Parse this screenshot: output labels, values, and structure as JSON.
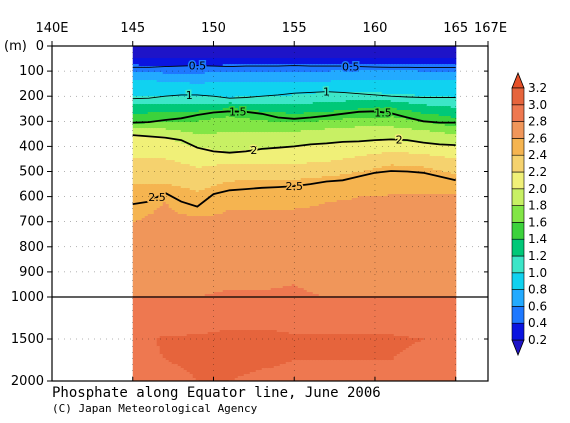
{
  "chart_data": {
    "type": "heatmap",
    "title": "Phosphate along Equator line, June 2006",
    "credit": "(C) Japan Meteorological Agency",
    "xlabel": "",
    "ylabel": "(m)",
    "x_ticks": [
      {
        "value": 140,
        "label": "140E"
      },
      {
        "value": 145,
        "label": "145"
      },
      {
        "value": 150,
        "label": "150"
      },
      {
        "value": 155,
        "label": "155"
      },
      {
        "value": 160,
        "label": "160"
      },
      {
        "value": 165,
        "label": "165"
      },
      {
        "value": 167,
        "label": "167E"
      }
    ],
    "xlim": [
      140,
      167
    ],
    "data_xlim": [
      145,
      165
    ],
    "y_ticks_upper": [
      0,
      100,
      200,
      300,
      400,
      500,
      600,
      700,
      800,
      900,
      1000
    ],
    "y_ticks_lower": [
      1000,
      1500,
      2000
    ],
    "ylim": [
      0,
      2000
    ],
    "axis_break_depth": 1000,
    "colorbar": {
      "levels": [
        0.2,
        0.4,
        0.6,
        0.8,
        1.0,
        1.2,
        1.4,
        1.6,
        1.8,
        2.0,
        2.2,
        2.4,
        2.6,
        2.8,
        3.0,
        3.2
      ],
      "labels": [
        "0.2",
        "0.4",
        "0.6",
        "0.8",
        "1.0",
        "1.2",
        "1.4",
        "1.6",
        "1.8",
        "2.0",
        "2.2",
        "2.4",
        "2.6",
        "2.8",
        "3.0",
        "3.2"
      ],
      "colors": [
        "#0a14e0",
        "#1e78ff",
        "#23aaff",
        "#10d2f0",
        "#3ce6c8",
        "#00c878",
        "#3cd23c",
        "#82e646",
        "#c8f064",
        "#f0f078",
        "#f5d26e",
        "#f5b450",
        "#f0965a",
        "#ee7850",
        "#e6643c"
      ],
      "under_color": "#1e14c8",
      "over_color": "#e65028"
    },
    "isolines": [
      {
        "value": 0.5,
        "label": "0.5",
        "major": false,
        "depths": [
          85,
          85,
          82,
          80,
          78,
          80,
          82,
          80,
          80,
          80,
          78,
          80,
          80,
          80,
          82,
          84,
          85,
          85,
          86,
          86,
          86
        ],
        "label_at": [
          [
            149,
            0.5
          ],
          [
            158.5,
            0.5
          ]
        ]
      },
      {
        "value": 1.0,
        "label": "1",
        "major": false,
        "depths": [
          210,
          208,
          200,
          195,
          195,
          200,
          208,
          205,
          200,
          195,
          188,
          185,
          182,
          185,
          190,
          195,
          200,
          203,
          205,
          205,
          205
        ],
        "label_at": [
          [
            148.5,
            1.0
          ],
          [
            157,
            1.0
          ]
        ]
      },
      {
        "value": 1.5,
        "label": "1.5",
        "major": true,
        "depths": [
          305,
          303,
          295,
          288,
          275,
          265,
          260,
          262,
          270,
          285,
          290,
          285,
          278,
          270,
          262,
          260,
          268,
          285,
          300,
          305,
          305
        ],
        "label_at": [
          [
            151.5,
            1.5
          ],
          [
            160.5,
            1.5
          ]
        ]
      },
      {
        "value": 2.0,
        "label": "2",
        "major": true,
        "depths": [
          355,
          360,
          365,
          375,
          405,
          420,
          425,
          420,
          410,
          405,
          400,
          392,
          388,
          382,
          380,
          375,
          372,
          375,
          385,
          392,
          395
        ],
        "label_at": [
          [
            152.5,
            2.0
          ],
          [
            161.5,
            2.0
          ]
        ]
      },
      {
        "value": 2.5,
        "label": "2.5",
        "major": true,
        "depths": [
          630,
          620,
          585,
          620,
          640,
          590,
          575,
          570,
          565,
          562,
          558,
          550,
          540,
          535,
          520,
          505,
          498,
          500,
          505,
          520,
          535
        ],
        "label_at": [
          [
            146.5,
            2.5
          ],
          [
            155,
            2.5
          ]
        ]
      }
    ],
    "depth_profiles": [
      {
        "x": 145,
        "v": [
          [
            0,
            0.1
          ],
          [
            50,
            0.2
          ],
          [
            100,
            0.6
          ],
          [
            150,
            0.9
          ],
          [
            200,
            1.0
          ],
          [
            250,
            1.3
          ],
          [
            300,
            1.5
          ],
          [
            350,
            2.0
          ],
          [
            400,
            2.1
          ],
          [
            450,
            2.2
          ],
          [
            500,
            2.3
          ],
          [
            550,
            2.4
          ],
          [
            600,
            2.5
          ],
          [
            620,
            2.5
          ],
          [
            700,
            2.6
          ],
          [
            800,
            2.7
          ],
          [
            900,
            2.75
          ],
          [
            1000,
            2.8
          ],
          [
            1200,
            2.85
          ],
          [
            1500,
            2.95
          ],
          [
            2000,
            2.95
          ]
        ]
      },
      {
        "x": 147,
        "v": [
          [
            0,
            0.1
          ],
          [
            50,
            0.2
          ],
          [
            100,
            0.55
          ],
          [
            150,
            0.85
          ],
          [
            200,
            1.0
          ],
          [
            250,
            1.35
          ],
          [
            300,
            1.6
          ],
          [
            360,
            2.0
          ],
          [
            420,
            2.15
          ],
          [
            480,
            2.25
          ],
          [
            530,
            2.35
          ],
          [
            580,
            2.5
          ],
          [
            620,
            2.6
          ],
          [
            700,
            2.65
          ],
          [
            800,
            2.7
          ],
          [
            900,
            2.78
          ],
          [
            1000,
            2.8
          ],
          [
            1200,
            2.88
          ],
          [
            1500,
            3.02
          ],
          [
            2000,
            2.98
          ]
        ]
      },
      {
        "x": 149,
        "v": [
          [
            0,
            0.1
          ],
          [
            50,
            0.2
          ],
          [
            100,
            0.55
          ],
          [
            150,
            0.8
          ],
          [
            200,
            1.0
          ],
          [
            260,
            1.4
          ],
          [
            300,
            1.6
          ],
          [
            405,
            2.0
          ],
          [
            450,
            2.15
          ],
          [
            520,
            2.25
          ],
          [
            580,
            2.4
          ],
          [
            640,
            2.5
          ],
          [
            680,
            2.6
          ],
          [
            750,
            2.65
          ],
          [
            850,
            2.72
          ],
          [
            1000,
            2.8
          ],
          [
            1200,
            2.9
          ],
          [
            1500,
            3.02
          ],
          [
            2000,
            3.0
          ]
        ]
      },
      {
        "x": 151,
        "v": [
          [
            0,
            0.1
          ],
          [
            50,
            0.2
          ],
          [
            100,
            0.6
          ],
          [
            150,
            0.85
          ],
          [
            205,
            1.0
          ],
          [
            260,
            1.5
          ],
          [
            300,
            1.7
          ],
          [
            422,
            2.0
          ],
          [
            470,
            2.2
          ],
          [
            520,
            2.35
          ],
          [
            575,
            2.5
          ],
          [
            650,
            2.6
          ],
          [
            800,
            2.7
          ],
          [
            900,
            2.75
          ],
          [
            1000,
            2.82
          ],
          [
            1200,
            2.92
          ],
          [
            1500,
            3.05
          ],
          [
            2000,
            3.0
          ]
        ]
      },
      {
        "x": 153,
        "v": [
          [
            0,
            0.1
          ],
          [
            50,
            0.2
          ],
          [
            100,
            0.6
          ],
          [
            150,
            0.85
          ],
          [
            200,
            1.0
          ],
          [
            275,
            1.5
          ],
          [
            330,
            1.75
          ],
          [
            412,
            2.0
          ],
          [
            470,
            2.2
          ],
          [
            520,
            2.35
          ],
          [
            565,
            2.5
          ],
          [
            650,
            2.6
          ],
          [
            800,
            2.68
          ],
          [
            900,
            2.75
          ],
          [
            1000,
            2.82
          ],
          [
            1200,
            2.92
          ],
          [
            1500,
            3.05
          ],
          [
            2000,
            2.98
          ]
        ]
      },
      {
        "x": 155,
        "v": [
          [
            0,
            0.1
          ],
          [
            50,
            0.2
          ],
          [
            100,
            0.6
          ],
          [
            150,
            0.85
          ],
          [
            195,
            1.0
          ],
          [
            288,
            1.5
          ],
          [
            340,
            1.8
          ],
          [
            400,
            2.0
          ],
          [
            470,
            2.2
          ],
          [
            520,
            2.35
          ],
          [
            560,
            2.5
          ],
          [
            650,
            2.6
          ],
          [
            800,
            2.7
          ],
          [
            900,
            2.78
          ],
          [
            1000,
            2.82
          ],
          [
            1200,
            2.92
          ],
          [
            1500,
            3.02
          ],
          [
            2000,
            2.98
          ]
        ]
      },
      {
        "x": 157,
        "v": [
          [
            0,
            0.1
          ],
          [
            50,
            0.2
          ],
          [
            100,
            0.6
          ],
          [
            150,
            0.85
          ],
          [
            185,
            1.0
          ],
          [
            280,
            1.5
          ],
          [
            330,
            1.8
          ],
          [
            388,
            2.0
          ],
          [
            460,
            2.2
          ],
          [
            510,
            2.35
          ],
          [
            542,
            2.5
          ],
          [
            620,
            2.6
          ],
          [
            800,
            2.68
          ],
          [
            900,
            2.74
          ],
          [
            1000,
            2.8
          ],
          [
            1200,
            2.92
          ],
          [
            1500,
            3.02
          ],
          [
            2000,
            2.98
          ]
        ]
      },
      {
        "x": 159,
        "v": [
          [
            0,
            0.1
          ],
          [
            50,
            0.2
          ],
          [
            100,
            0.62
          ],
          [
            150,
            0.88
          ],
          [
            183,
            1.0
          ],
          [
            268,
            1.5
          ],
          [
            320,
            1.8
          ],
          [
            382,
            2.0
          ],
          [
            440,
            2.2
          ],
          [
            490,
            2.35
          ],
          [
            525,
            2.5
          ],
          [
            600,
            2.6
          ],
          [
            800,
            2.68
          ],
          [
            900,
            2.74
          ],
          [
            1000,
            2.8
          ],
          [
            1200,
            2.9
          ],
          [
            1500,
            3.02
          ],
          [
            2000,
            2.98
          ]
        ]
      },
      {
        "x": 161,
        "v": [
          [
            0,
            0.1
          ],
          [
            50,
            0.2
          ],
          [
            100,
            0.62
          ],
          [
            150,
            0.88
          ],
          [
            190,
            1.0
          ],
          [
            262,
            1.5
          ],
          [
            320,
            1.8
          ],
          [
            375,
            2.0
          ],
          [
            420,
            2.2
          ],
          [
            460,
            2.35
          ],
          [
            500,
            2.5
          ],
          [
            590,
            2.6
          ],
          [
            800,
            2.68
          ],
          [
            900,
            2.74
          ],
          [
            1000,
            2.8
          ],
          [
            1200,
            2.9
          ],
          [
            1500,
            3.02
          ],
          [
            2000,
            2.98
          ]
        ]
      },
      {
        "x": 163,
        "v": [
          [
            0,
            0.1
          ],
          [
            50,
            0.2
          ],
          [
            100,
            0.6
          ],
          [
            150,
            0.88
          ],
          [
            200,
            1.0
          ],
          [
            285,
            1.5
          ],
          [
            335,
            1.8
          ],
          [
            385,
            2.0
          ],
          [
            430,
            2.2
          ],
          [
            470,
            2.35
          ],
          [
            505,
            2.5
          ],
          [
            590,
            2.6
          ],
          [
            800,
            2.68
          ],
          [
            900,
            2.74
          ],
          [
            1000,
            2.8
          ],
          [
            1200,
            2.9
          ],
          [
            1500,
            3.0
          ],
          [
            2000,
            2.95
          ]
        ]
      },
      {
        "x": 165,
        "v": [
          [
            0,
            0.1
          ],
          [
            50,
            0.2
          ],
          [
            100,
            0.6
          ],
          [
            150,
            0.88
          ],
          [
            205,
            1.0
          ],
          [
            305,
            1.5
          ],
          [
            350,
            1.8
          ],
          [
            395,
            2.0
          ],
          [
            450,
            2.2
          ],
          [
            500,
            2.35
          ],
          [
            535,
            2.5
          ],
          [
            590,
            2.6
          ],
          [
            800,
            2.68
          ],
          [
            900,
            2.74
          ],
          [
            1000,
            2.8
          ],
          [
            1200,
            2.85
          ],
          [
            1500,
            2.95
          ],
          [
            2000,
            2.95
          ]
        ]
      }
    ]
  }
}
